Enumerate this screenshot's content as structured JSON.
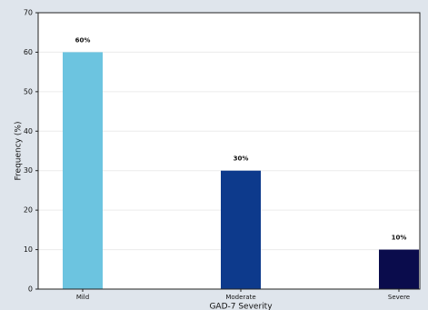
{
  "chart_data": {
    "type": "bar",
    "x_label": "GAD-7 Severity",
    "y_label": "Frequency (%)",
    "categories": [
      "Mild",
      "Moderate",
      "Severe"
    ],
    "values": [
      60,
      30,
      10
    ],
    "value_labels": [
      "60%",
      "30%",
      "10%"
    ],
    "colors": [
      "#6cc4e0",
      "#0d3a8c",
      "#0a0c4c"
    ],
    "ylim": [
      0,
      70
    ],
    "yticks": [
      0,
      10,
      20,
      30,
      40,
      50,
      60,
      70
    ],
    "grid": true
  }
}
